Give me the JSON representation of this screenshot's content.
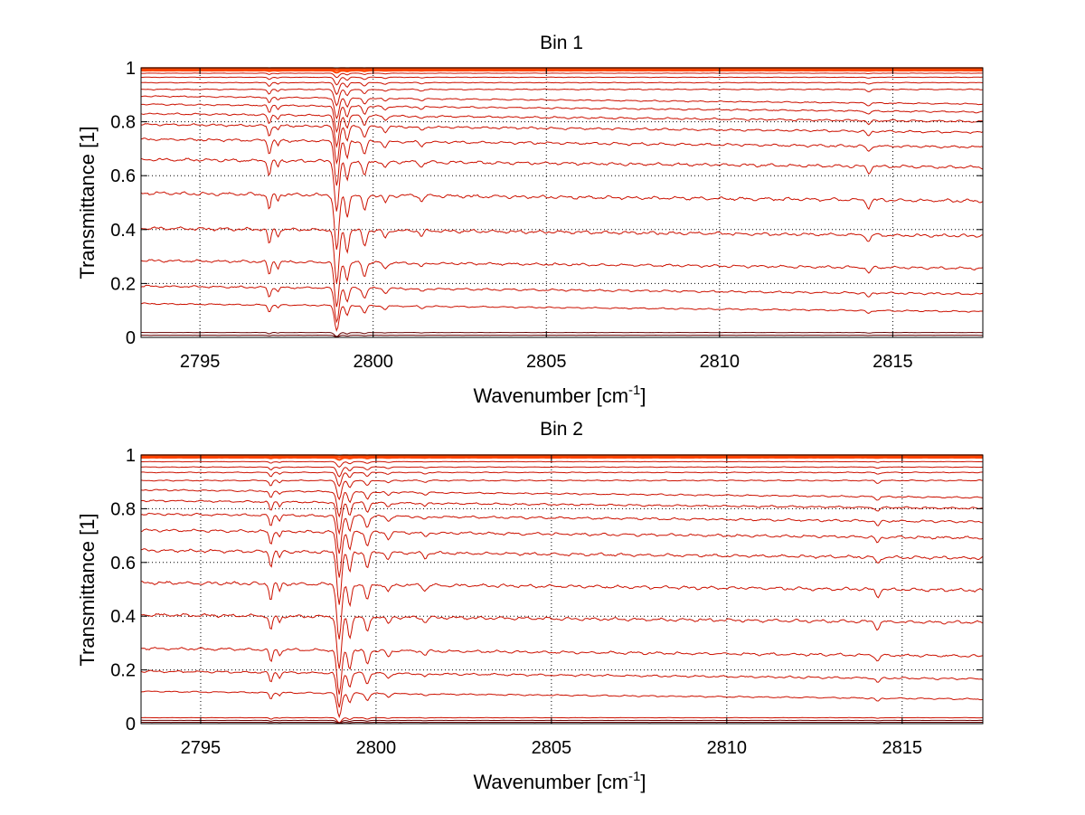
{
  "chart_data": [
    {
      "type": "line",
      "title": "Bin 1",
      "xlabel": "Wavenumber [cm",
      "xlabel_sup": "-1",
      "xlabel_end": "]",
      "ylabel": "Transmittance [1]",
      "xlim": [
        2793.3,
        2817.6
      ],
      "ylim": [
        0,
        1
      ],
      "xticks": [
        2795,
        2800,
        2805,
        2810,
        2815
      ],
      "xtick_labels": [
        "2795",
        "2800",
        "2805",
        "2810",
        "2815"
      ],
      "yticks": [
        0,
        0.2,
        0.4,
        0.6,
        0.8,
        1
      ],
      "ytick_labels": [
        "0",
        "0.2",
        "0.4",
        "0.6",
        "0.8",
        "1"
      ],
      "grid": true,
      "line_color": "#cc1100",
      "series_baselines": [
        0.999,
        0.995,
        0.99,
        0.98,
        0.965,
        0.945,
        0.92,
        0.895,
        0.865,
        0.83,
        0.79,
        0.735,
        0.66,
        0.535,
        0.405,
        0.285,
        0.19,
        0.125,
        0.018,
        0.008
      ]
    },
    {
      "type": "line",
      "title": "Bin 2",
      "xlabel": "Wavenumber [cm",
      "xlabel_sup": "-1",
      "xlabel_end": "]",
      "ylabel": "Transmittance [1]",
      "xlim": [
        2793.3,
        2817.3
      ],
      "ylim": [
        0,
        1
      ],
      "xticks": [
        2795,
        2800,
        2805,
        2810,
        2815
      ],
      "xtick_labels": [
        "2795",
        "2800",
        "2805",
        "2810",
        "2815"
      ],
      "yticks": [
        0,
        0.2,
        0.4,
        0.6,
        0.8,
        1
      ],
      "ytick_labels": [
        "0",
        "0.2",
        "0.4",
        "0.6",
        "0.8",
        "1"
      ],
      "grid": true,
      "line_color": "#cc1100",
      "series_baselines": [
        0.999,
        0.995,
        0.99,
        0.975,
        0.955,
        0.935,
        0.905,
        0.87,
        0.83,
        0.78,
        0.72,
        0.645,
        0.525,
        0.405,
        0.28,
        0.195,
        0.12,
        0.022,
        0.012,
        0.005
      ]
    }
  ]
}
